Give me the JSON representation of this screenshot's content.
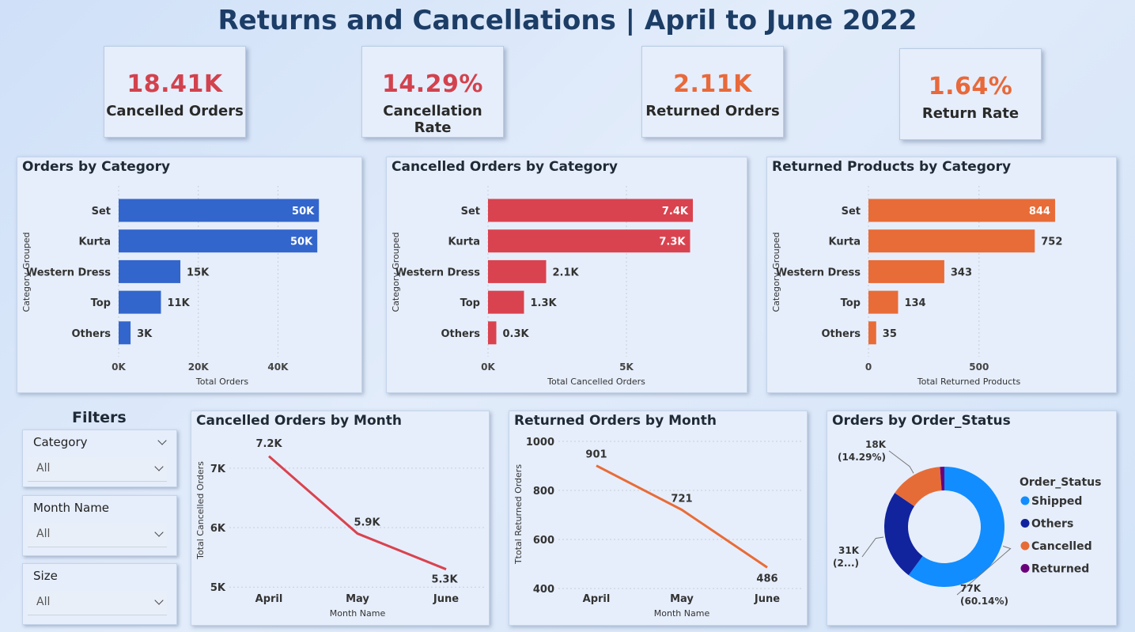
{
  "title": "Returns and Cancellations | April to June 2022",
  "kpis": [
    {
      "value": "18.41K",
      "label": "Cancelled Orders",
      "color": "#d2424e"
    },
    {
      "value": "14.29%",
      "label": "Cancellation Rate",
      "color": "#d2424e"
    },
    {
      "value": "2.11K",
      "label": "Returned Orders",
      "color": "#e8693a"
    },
    {
      "value": "1.64%",
      "label": "Return Rate",
      "color": "#e8693a"
    }
  ],
  "filters": {
    "title": "Filters",
    "items": [
      {
        "label": "Category",
        "value": "All"
      },
      {
        "label": "Month Name",
        "value": "All"
      },
      {
        "label": "Size",
        "value": "All"
      }
    ]
  },
  "chart_data": [
    {
      "type": "bar",
      "title": "Orders by Category",
      "ylabel": "Category Grouped",
      "xlabel": "Total Orders",
      "categories": [
        "Set",
        "Kurta",
        "Western Dress",
        "Top",
        "Others"
      ],
      "values": [
        50284,
        49877,
        15500,
        10622,
        2996
      ],
      "data_labels": [
        "50K",
        "50K",
        "15K",
        "11K",
        "3K"
      ],
      "xticks": [
        "0K",
        "20K",
        "40K"
      ],
      "xtick_values": [
        0,
        20000,
        40000
      ],
      "xlim": [
        0,
        56000
      ],
      "color": "#3366cc"
    },
    {
      "type": "bar",
      "title": "Cancelled Orders by Category",
      "ylabel": "Category Grouped",
      "xlabel": "Total Cancelled Orders",
      "categories": [
        "Set",
        "Kurta",
        "Western Dress",
        "Top",
        "Others"
      ],
      "values": [
        7400,
        7300,
        2100,
        1300,
        300
      ],
      "data_labels": [
        "7.4K",
        "7.3K",
        "2.1K",
        "1.3K",
        "0.3K"
      ],
      "xticks": [
        "0K",
        "5K"
      ],
      "xtick_values": [
        0,
        5000
      ],
      "xlim": [
        0,
        8400
      ],
      "color": "#d9434f"
    },
    {
      "type": "bar",
      "title": "Returned Products by Category",
      "ylabel": "Category Grouped",
      "xlabel": "Total Returned Products",
      "categories": [
        "Set",
        "Kurta",
        "Western Dress",
        "Top",
        "Others"
      ],
      "values": [
        844,
        752,
        343,
        134,
        35
      ],
      "data_labels": [
        "844",
        "752",
        "343",
        "134",
        "35"
      ],
      "xticks": [
        "0",
        "500"
      ],
      "xtick_values": [
        0,
        500
      ],
      "xlim": [
        0,
        980
      ],
      "color": "#e86c37"
    },
    {
      "type": "line",
      "title": "Cancelled Orders by Month",
      "ylabel": "Total Cancelled Orders",
      "xlabel": "Month Name",
      "categories": [
        "April",
        "May",
        "June"
      ],
      "values": [
        7200,
        5900,
        5300
      ],
      "data_labels": [
        "7.2K",
        "5.9K",
        "5.3K"
      ],
      "yticks": [
        "5K",
        "6K",
        "7K"
      ],
      "ytick_values": [
        5000,
        6000,
        7000
      ],
      "ylim": [
        4950,
        7450
      ],
      "color": "#d9434f"
    },
    {
      "type": "line",
      "title": "Returned Orders by Month",
      "ylabel": "Ttotal Returned Orders",
      "xlabel": "Month Name",
      "categories": [
        "April",
        "May",
        "June"
      ],
      "values": [
        901,
        721,
        486
      ],
      "data_labels": [
        "901",
        "721",
        "486"
      ],
      "yticks": [
        "400",
        "600",
        "800",
        "1000"
      ],
      "ytick_values": [
        400,
        600,
        800,
        1000
      ],
      "ylim": [
        400,
        1000
      ],
      "color": "#e86c37"
    },
    {
      "type": "pie",
      "title": "Orders by Order_Status",
      "legend_title": "Order_Status",
      "legend_placement": "right",
      "slices": [
        {
          "name": "Shipped",
          "value": 60.14,
          "label": "77K\n(60.14%)",
          "color": "#118dff"
        },
        {
          "name": "Others",
          "value": 24.4,
          "label": "31K\n(2...)",
          "color": "#12239e"
        },
        {
          "name": "Cancelled",
          "value": 14.29,
          "label": "18K\n(14.29%)",
          "color": "#e66c37"
        },
        {
          "name": "Returned",
          "value": 1.17,
          "label": "",
          "color": "#6b007b"
        }
      ]
    }
  ]
}
